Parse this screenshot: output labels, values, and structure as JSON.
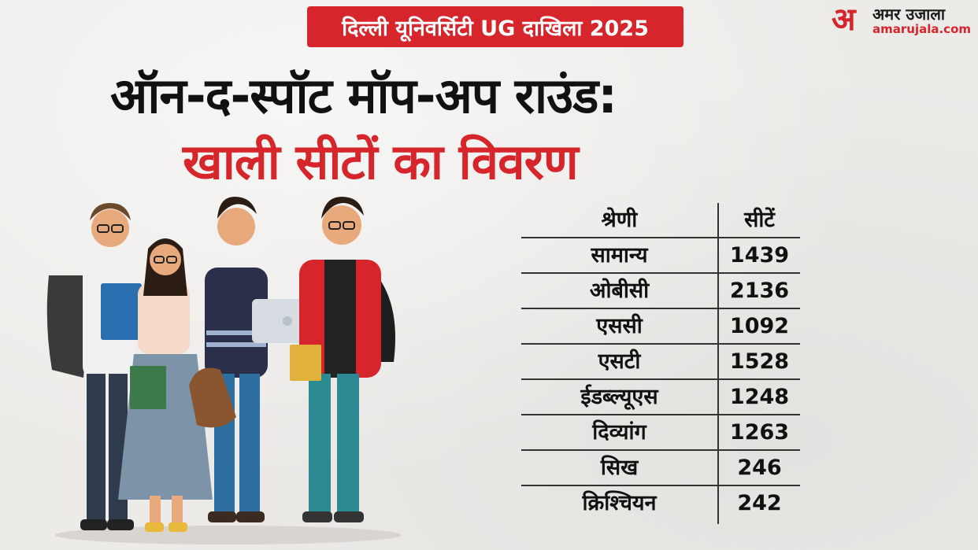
{
  "badge": {
    "text": "दिल्ली यूनिवर्सिटी UG दाखिला 2025"
  },
  "logo": {
    "mark": "अ",
    "name": "अमर उजाला",
    "domain": "amarujala.com"
  },
  "headline": {
    "line1": "ऑन-द-स्पॉट मॉप-अप राउंड:",
    "line2": "खाली सीटों का विवरण"
  },
  "table": {
    "headers": {
      "category": "श्रेणी",
      "seats": "सीटें"
    },
    "rows": [
      {
        "category": "सामान्य",
        "seats": "1439"
      },
      {
        "category": "ओबीसी",
        "seats": "2136"
      },
      {
        "category": "एससी",
        "seats": "1092"
      },
      {
        "category": "एसटी",
        "seats": "1528"
      },
      {
        "category": "ईडब्ल्यूएस",
        "seats": "1248"
      },
      {
        "category": "दिव्यांग",
        "seats": "1263"
      },
      {
        "category": "सिख",
        "seats": "246"
      },
      {
        "category": "क्रिश्चियन",
        "seats": "242"
      }
    ]
  },
  "colors": {
    "accent": "#d6252b",
    "text": "#111111",
    "background": "#ecebe8"
  }
}
